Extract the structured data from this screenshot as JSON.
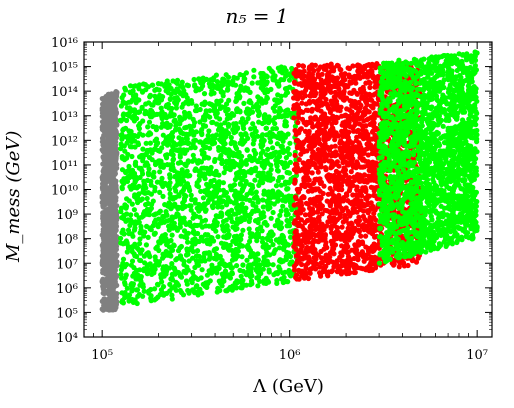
{
  "chart_data": {
    "type": "scatter",
    "title": "n₅ = 1",
    "xlabel": "Λ (GeV)",
    "ylabel": "M_mess (GeV)",
    "x_scale": "log",
    "y_scale": "log",
    "xlim": [
      80000,
      12000000
    ],
    "ylim": [
      10000,
      10000000000000000
    ],
    "x_ticks": [
      "10⁵",
      "10⁶",
      "10⁷"
    ],
    "y_ticks": [
      "10⁴",
      "10⁵",
      "10⁶",
      "10⁷",
      "10⁸",
      "10⁹",
      "10¹⁰",
      "10¹¹",
      "10¹²",
      "10¹³",
      "10¹⁴",
      "10¹⁵",
      "10¹⁶"
    ],
    "grid": false,
    "series": [
      {
        "color": "#808080",
        "x_range": [
          100000,
          120000
        ],
        "y_bottom": [
          120000,
          125000
        ],
        "y_top": [
          100000000000000,
          100000000000000
        ],
        "note_gaps_y": [
          300000000,
          9000000000000
        ]
      },
      {
        "color": "#00ff00",
        "x_range": [
          125000,
          1100000
        ],
        "y_bottom": [
          170000,
          2000000
        ],
        "y_top": [
          150000000000000,
          1200000000000000
        ]
      },
      {
        "color": "#ff0000",
        "x_range": [
          1050000,
          5000000
        ],
        "y_bottom": [
          2000000,
          9000000
        ],
        "y_top": [
          1200000000000000,
          1500000000000000
        ]
      },
      {
        "color": "#00ff00",
        "x_range": [
          3000000,
          10000000
        ],
        "y_bottom": [
          9000000,
          100000000
        ],
        "y_top": [
          1500000000000000,
          4000000000000000
        ]
      }
    ]
  }
}
